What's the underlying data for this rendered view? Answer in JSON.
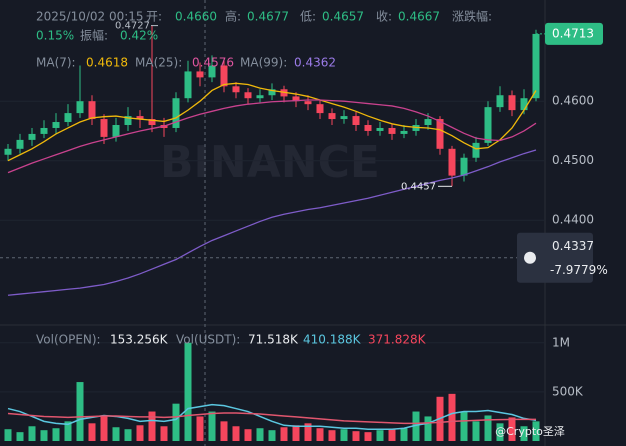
{
  "chart_data": {
    "type": "candlestick",
    "header": {
      "date": "2025/10/02 00:15",
      "open_label": "开:",
      "open": "0.4660",
      "high_label": "高:",
      "high": "0.4677",
      "low_label": "低:",
      "low": "0.4657",
      "close_label": "收:",
      "close": "0.4667",
      "change_label": "涨跌幅:",
      "change": "0.15%",
      "amp_label": "振幅:",
      "amp": "0.42%"
    },
    "ma_legend": [
      {
        "name": "MA(7):",
        "value": "0.4618"
      },
      {
        "name": "MA(25):",
        "value": "0.4576"
      },
      {
        "name": "MA(99):",
        "value": "0.4362"
      }
    ],
    "vol_legend": {
      "name": "Vol(OPEN):",
      "open": "153.256K",
      "name2": "Vol(USDT):",
      "usdt": "71.518K",
      "ma1": "410.188K",
      "ma2": "371.828K"
    },
    "watermark": "BINANCE",
    "credit": "@Crypto圣泽",
    "ylim": [
      0.4224,
      0.477
    ],
    "yticks": [
      {
        "value": 0.46,
        "label": "0.4600"
      },
      {
        "value": 0.45,
        "label": "0.4500"
      },
      {
        "value": 0.44,
        "label": "0.4400"
      }
    ],
    "price_tag": {
      "value": 0.4713,
      "label": "0.4713"
    },
    "crosshair": {
      "value": 0.4337,
      "label": "0.4337",
      "pct": "-7.9779%"
    },
    "annotations": [
      {
        "value": 0.4727,
        "label": "0.4727"
      },
      {
        "value": 0.4457,
        "label": "0.4457"
      }
    ],
    "up_color": "#2ebd85",
    "down_color": "#f6465d",
    "open": [
      0.451,
      0.452,
      0.4535,
      0.4545,
      0.4555,
      0.4565,
      0.458,
      0.46,
      0.457,
      0.454,
      0.456,
      0.4575,
      0.457,
      0.456,
      0.4555,
      0.4605,
      0.465,
      0.464,
      0.466,
      0.4625,
      0.4615,
      0.4605,
      0.461,
      0.462,
      0.4608,
      0.46,
      0.4595,
      0.458,
      0.457,
      0.4575,
      0.456,
      0.455,
      0.4555,
      0.4545,
      0.455,
      0.456,
      0.457,
      0.452,
      0.4475,
      0.4505,
      0.453,
      0.459,
      0.461,
      0.4585,
      0.4605
    ],
    "high": [
      0.4528,
      0.4545,
      0.4555,
      0.4568,
      0.458,
      0.4595,
      0.466,
      0.461,
      0.4578,
      0.4572,
      0.459,
      0.4585,
      0.4727,
      0.4572,
      0.4615,
      0.4668,
      0.4665,
      0.4677,
      0.4668,
      0.4632,
      0.4622,
      0.462,
      0.463,
      0.4626,
      0.4615,
      0.461,
      0.4602,
      0.4588,
      0.4585,
      0.4582,
      0.4568,
      0.4565,
      0.4562,
      0.456,
      0.457,
      0.458,
      0.4575,
      0.4525,
      0.4512,
      0.454,
      0.46,
      0.4625,
      0.4618,
      0.462,
      0.472
    ],
    "low": [
      0.45,
      0.4512,
      0.4525,
      0.4538,
      0.4545,
      0.4558,
      0.4572,
      0.456,
      0.4528,
      0.4532,
      0.455,
      0.4555,
      0.4548,
      0.454,
      0.4548,
      0.4598,
      0.4625,
      0.4632,
      0.4615,
      0.4605,
      0.4595,
      0.4598,
      0.4602,
      0.4598,
      0.459,
      0.4585,
      0.457,
      0.456,
      0.4562,
      0.455,
      0.4542,
      0.4542,
      0.4535,
      0.4538,
      0.4542,
      0.4552,
      0.451,
      0.4457,
      0.4465,
      0.4498,
      0.4525,
      0.4582,
      0.4575,
      0.4578,
      0.46
    ],
    "close": [
      0.452,
      0.4535,
      0.4545,
      0.4555,
      0.4565,
      0.458,
      0.46,
      0.457,
      0.454,
      0.456,
      0.4575,
      0.457,
      0.456,
      0.4555,
      0.4605,
      0.465,
      0.464,
      0.466,
      0.4625,
      0.4615,
      0.4605,
      0.461,
      0.462,
      0.4608,
      0.46,
      0.4595,
      0.458,
      0.457,
      0.4575,
      0.456,
      0.455,
      0.4555,
      0.4545,
      0.455,
      0.456,
      0.457,
      0.452,
      0.4475,
      0.4505,
      0.453,
      0.459,
      0.461,
      0.4585,
      0.4605,
      0.4713
    ],
    "ma": [
      {
        "color": "#f0b90b",
        "values": [
          0.45,
          0.451,
          0.452,
          0.4532,
          0.4545,
          0.4555,
          0.4565,
          0.4572,
          0.4574,
          0.4575,
          0.4572,
          0.457,
          0.4568,
          0.4566,
          0.4572,
          0.4585,
          0.46,
          0.4618,
          0.4628,
          0.463,
          0.4628,
          0.4622,
          0.4618,
          0.4615,
          0.4612,
          0.4608,
          0.4602,
          0.4596,
          0.459,
          0.4583,
          0.4575,
          0.4568,
          0.4562,
          0.4558,
          0.4556,
          0.4555,
          0.4552,
          0.4542,
          0.453,
          0.452,
          0.4522,
          0.4535,
          0.4555,
          0.4585,
          0.4618
        ]
      },
      {
        "color": "#c9428e",
        "values": [
          0.448,
          0.4488,
          0.4496,
          0.4503,
          0.451,
          0.4517,
          0.4524,
          0.453,
          0.4535,
          0.454,
          0.4545,
          0.455,
          0.4554,
          0.4558,
          0.4565,
          0.4572,
          0.4578,
          0.4583,
          0.4588,
          0.4592,
          0.4595,
          0.4597,
          0.4599,
          0.46,
          0.4601,
          0.4602,
          0.4602,
          0.4601,
          0.46,
          0.4598,
          0.4596,
          0.4594,
          0.4592,
          0.4588,
          0.4582,
          0.4575,
          0.4566,
          0.4556,
          0.4546,
          0.4538,
          0.4535,
          0.4534,
          0.454,
          0.455,
          0.4563
        ]
      },
      {
        "color": "#7e5cc9",
        "values": [
          0.4274,
          0.4276,
          0.4278,
          0.428,
          0.4282,
          0.4284,
          0.4286,
          0.4289,
          0.4292,
          0.4297,
          0.4303,
          0.431,
          0.4318,
          0.4326,
          0.4334,
          0.4345,
          0.4356,
          0.4366,
          0.4374,
          0.4382,
          0.439,
          0.4398,
          0.4405,
          0.441,
          0.4414,
          0.4418,
          0.4421,
          0.4425,
          0.4429,
          0.4433,
          0.4437,
          0.4442,
          0.4447,
          0.4452,
          0.4457,
          0.4462,
          0.4467,
          0.4471,
          0.4476,
          0.4483,
          0.449,
          0.4498,
          0.4505,
          0.4512,
          0.4518
        ]
      }
    ],
    "vol_ylim": [
      0,
      1130000
    ],
    "vol_yticks": [
      {
        "value": 1000000,
        "label": "1M"
      },
      {
        "value": 500000,
        "label": "500K"
      }
    ],
    "volume": [
      120000,
      90000,
      150000,
      110000,
      130000,
      200000,
      600000,
      180000,
      250000,
      140000,
      120000,
      160000,
      300000,
      150000,
      380000,
      1000000,
      250000,
      300000,
      200000,
      150000,
      120000,
      130000,
      110000,
      140000,
      160000,
      180000,
      130000,
      110000,
      120000,
      100000,
      90000,
      110000,
      120000,
      130000,
      300000,
      250000,
      450000,
      480000,
      300000,
      200000,
      260000,
      180000,
      240000,
      150000,
      200000
    ],
    "vol_ma": [
      {
        "color": "#5bc7e0",
        "values": [
          330000,
          300000,
          250000,
          200000,
          180000,
          170000,
          220000,
          240000,
          260000,
          250000,
          230000,
          200000,
          210000,
          200000,
          220000,
          330000,
          350000,
          370000,
          360000,
          330000,
          300000,
          250000,
          200000,
          160000,
          150000,
          150000,
          150000,
          140000,
          130000,
          130000,
          120000,
          120000,
          120000,
          130000,
          160000,
          180000,
          230000,
          280000,
          300000,
          300000,
          310000,
          290000,
          270000,
          230000,
          210000
        ]
      },
      {
        "color": "#e0566e",
        "values": [
          280000,
          270000,
          260000,
          250000,
          245000,
          240000,
          245000,
          250000,
          255000,
          255000,
          250000,
          245000,
          245000,
          240000,
          245000,
          260000,
          270000,
          280000,
          285000,
          285000,
          280000,
          275000,
          265000,
          255000,
          245000,
          235000,
          225000,
          215000,
          205000,
          200000,
          195000,
          190000,
          185000,
          180000,
          180000,
          185000,
          190000,
          200000,
          205000,
          210000,
          215000,
          218000,
          220000,
          220000,
          220000
        ]
      }
    ]
  }
}
